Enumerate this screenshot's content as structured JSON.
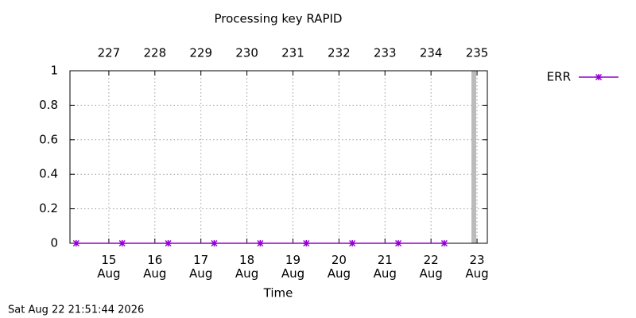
{
  "chart_data": {
    "type": "line",
    "title": "Processing key RAPID",
    "xlabel": "Time",
    "footer": "Sat Aug 22 21:51:44 2026",
    "x": [
      14.29,
      15.29,
      16.29,
      17.29,
      18.29,
      19.29,
      20.29,
      21.29,
      22.29
    ],
    "series": [
      {
        "name": "ERR",
        "color": "#9400d3",
        "values": [
          0,
          0,
          0,
          0,
          0,
          0,
          0,
          0,
          0
        ]
      }
    ],
    "xlim": [
      14.155,
      23.224
    ],
    "xticks": [
      {
        "value": 15,
        "label": "15 Aug"
      },
      {
        "value": 16,
        "label": "16 Aug"
      },
      {
        "value": 17,
        "label": "17 Aug"
      },
      {
        "value": 18,
        "label": "18 Aug"
      },
      {
        "value": 19,
        "label": "19 Aug"
      },
      {
        "value": 20,
        "label": "20 Aug"
      },
      {
        "value": 21,
        "label": "21 Aug"
      },
      {
        "value": 22,
        "label": "22 Aug"
      },
      {
        "value": 23,
        "label": "23 Aug"
      }
    ],
    "x2lim": [
      226.155,
      235.224
    ],
    "x2ticks": [
      227,
      228,
      229,
      230,
      231,
      232,
      233,
      234,
      235
    ],
    "ylim": [
      0,
      1
    ],
    "yticks": [
      0,
      0.2,
      0.4,
      0.6,
      0.8,
      1
    ],
    "highlight_x": 22.93,
    "highlight_color": "#bbbbbb",
    "grid": true,
    "legend": "top-right"
  }
}
